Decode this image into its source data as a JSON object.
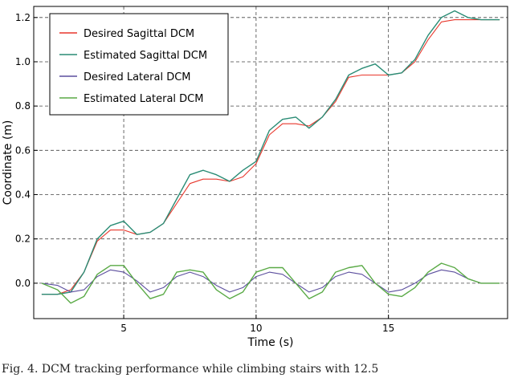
{
  "chart_data": {
    "type": "line",
    "xlabel": "Time (s)",
    "ylabel": "Coordinate (m)",
    "xlim": [
      1.6,
      19.5
    ],
    "ylim": [
      -0.16,
      1.25
    ],
    "x_ticks": [
      5,
      10,
      15
    ],
    "x_tick_labels": [
      "5",
      "10",
      "15"
    ],
    "y_ticks": [
      0.0,
      0.2,
      0.4,
      0.6,
      0.8,
      1.0,
      1.2
    ],
    "y_tick_labels": [
      "0.0",
      "0.2",
      "0.4",
      "0.6",
      "0.8",
      "1.0",
      "1.2"
    ],
    "grid": true,
    "grid_style": "dashed",
    "legend_position": "top-left",
    "series": [
      {
        "name": "Desired Sagittal DCM",
        "color": "#e8372c",
        "x": [
          1.9,
          2.5,
          3.0,
          3.5,
          4.0,
          4.5,
          5.0,
          5.5,
          6.0,
          6.5,
          7.0,
          7.5,
          8.0,
          8.5,
          9.0,
          9.5,
          10.0,
          10.5,
          11.0,
          11.5,
          12.0,
          12.5,
          13.0,
          13.5,
          14.0,
          14.5,
          15.0,
          15.5,
          16.0,
          16.5,
          17.0,
          17.5,
          18.0,
          18.5,
          19.2
        ],
        "values": [
          -0.05,
          -0.05,
          -0.03,
          0.05,
          0.19,
          0.24,
          0.24,
          0.22,
          0.23,
          0.27,
          0.36,
          0.45,
          0.47,
          0.47,
          0.46,
          0.48,
          0.54,
          0.67,
          0.72,
          0.72,
          0.71,
          0.75,
          0.82,
          0.93,
          0.94,
          0.94,
          0.94,
          0.95,
          1.0,
          1.1,
          1.18,
          1.19,
          1.19,
          1.19,
          1.19
        ]
      },
      {
        "name": "Estimated Sagittal DCM",
        "color": "#2a8c75",
        "x": [
          1.9,
          2.5,
          3.0,
          3.5,
          4.0,
          4.5,
          5.0,
          5.5,
          6.0,
          6.5,
          7.0,
          7.5,
          8.0,
          8.5,
          9.0,
          9.5,
          10.0,
          10.5,
          11.0,
          11.5,
          12.0,
          12.5,
          13.0,
          13.5,
          14.0,
          14.5,
          15.0,
          15.5,
          16.0,
          16.5,
          17.0,
          17.5,
          18.0,
          18.5,
          19.2
        ],
        "values": [
          -0.05,
          -0.05,
          -0.04,
          0.05,
          0.2,
          0.26,
          0.28,
          0.22,
          0.23,
          0.27,
          0.38,
          0.49,
          0.51,
          0.49,
          0.46,
          0.51,
          0.55,
          0.69,
          0.74,
          0.75,
          0.7,
          0.75,
          0.83,
          0.94,
          0.97,
          0.99,
          0.94,
          0.95,
          1.01,
          1.12,
          1.2,
          1.23,
          1.2,
          1.19,
          1.19
        ]
      },
      {
        "name": "Desired Lateral DCM",
        "color": "#5c4f9e",
        "x": [
          1.9,
          2.5,
          3.0,
          3.5,
          4.0,
          4.5,
          5.0,
          5.5,
          6.0,
          6.5,
          7.0,
          7.5,
          8.0,
          8.5,
          9.0,
          9.5,
          10.0,
          10.5,
          11.0,
          11.5,
          12.0,
          12.5,
          13.0,
          13.5,
          14.0,
          14.5,
          15.0,
          15.5,
          16.0,
          16.5,
          17.0,
          17.5,
          18.0,
          18.5,
          19.2
        ],
        "values": [
          0.0,
          -0.01,
          -0.04,
          -0.03,
          0.03,
          0.06,
          0.05,
          0.01,
          -0.04,
          -0.02,
          0.03,
          0.05,
          0.03,
          -0.01,
          -0.04,
          -0.02,
          0.03,
          0.05,
          0.04,
          0.0,
          -0.04,
          -0.02,
          0.03,
          0.05,
          0.04,
          0.0,
          -0.04,
          -0.03,
          0.0,
          0.04,
          0.06,
          0.05,
          0.02,
          0.0,
          0.0
        ]
      },
      {
        "name": "Estimated Lateral DCM",
        "color": "#5aaa46",
        "x": [
          1.9,
          2.5,
          3.0,
          3.5,
          4.0,
          4.5,
          5.0,
          5.5,
          6.0,
          6.5,
          7.0,
          7.5,
          8.0,
          8.5,
          9.0,
          9.5,
          10.0,
          10.5,
          11.0,
          11.5,
          12.0,
          12.5,
          13.0,
          13.5,
          14.0,
          14.5,
          15.0,
          15.5,
          16.0,
          16.5,
          17.0,
          17.5,
          18.0,
          18.5,
          19.2
        ],
        "values": [
          0.0,
          -0.03,
          -0.09,
          -0.06,
          0.04,
          0.08,
          0.08,
          0.0,
          -0.07,
          -0.05,
          0.05,
          0.06,
          0.05,
          -0.03,
          -0.07,
          -0.04,
          0.05,
          0.07,
          0.07,
          0.0,
          -0.07,
          -0.04,
          0.05,
          0.07,
          0.08,
          0.0,
          -0.05,
          -0.06,
          -0.02,
          0.05,
          0.09,
          0.07,
          0.02,
          0.0,
          0.0
        ]
      }
    ]
  },
  "caption": "Fig. 4.  DCM tracking performance while climbing stairs with 12.5"
}
